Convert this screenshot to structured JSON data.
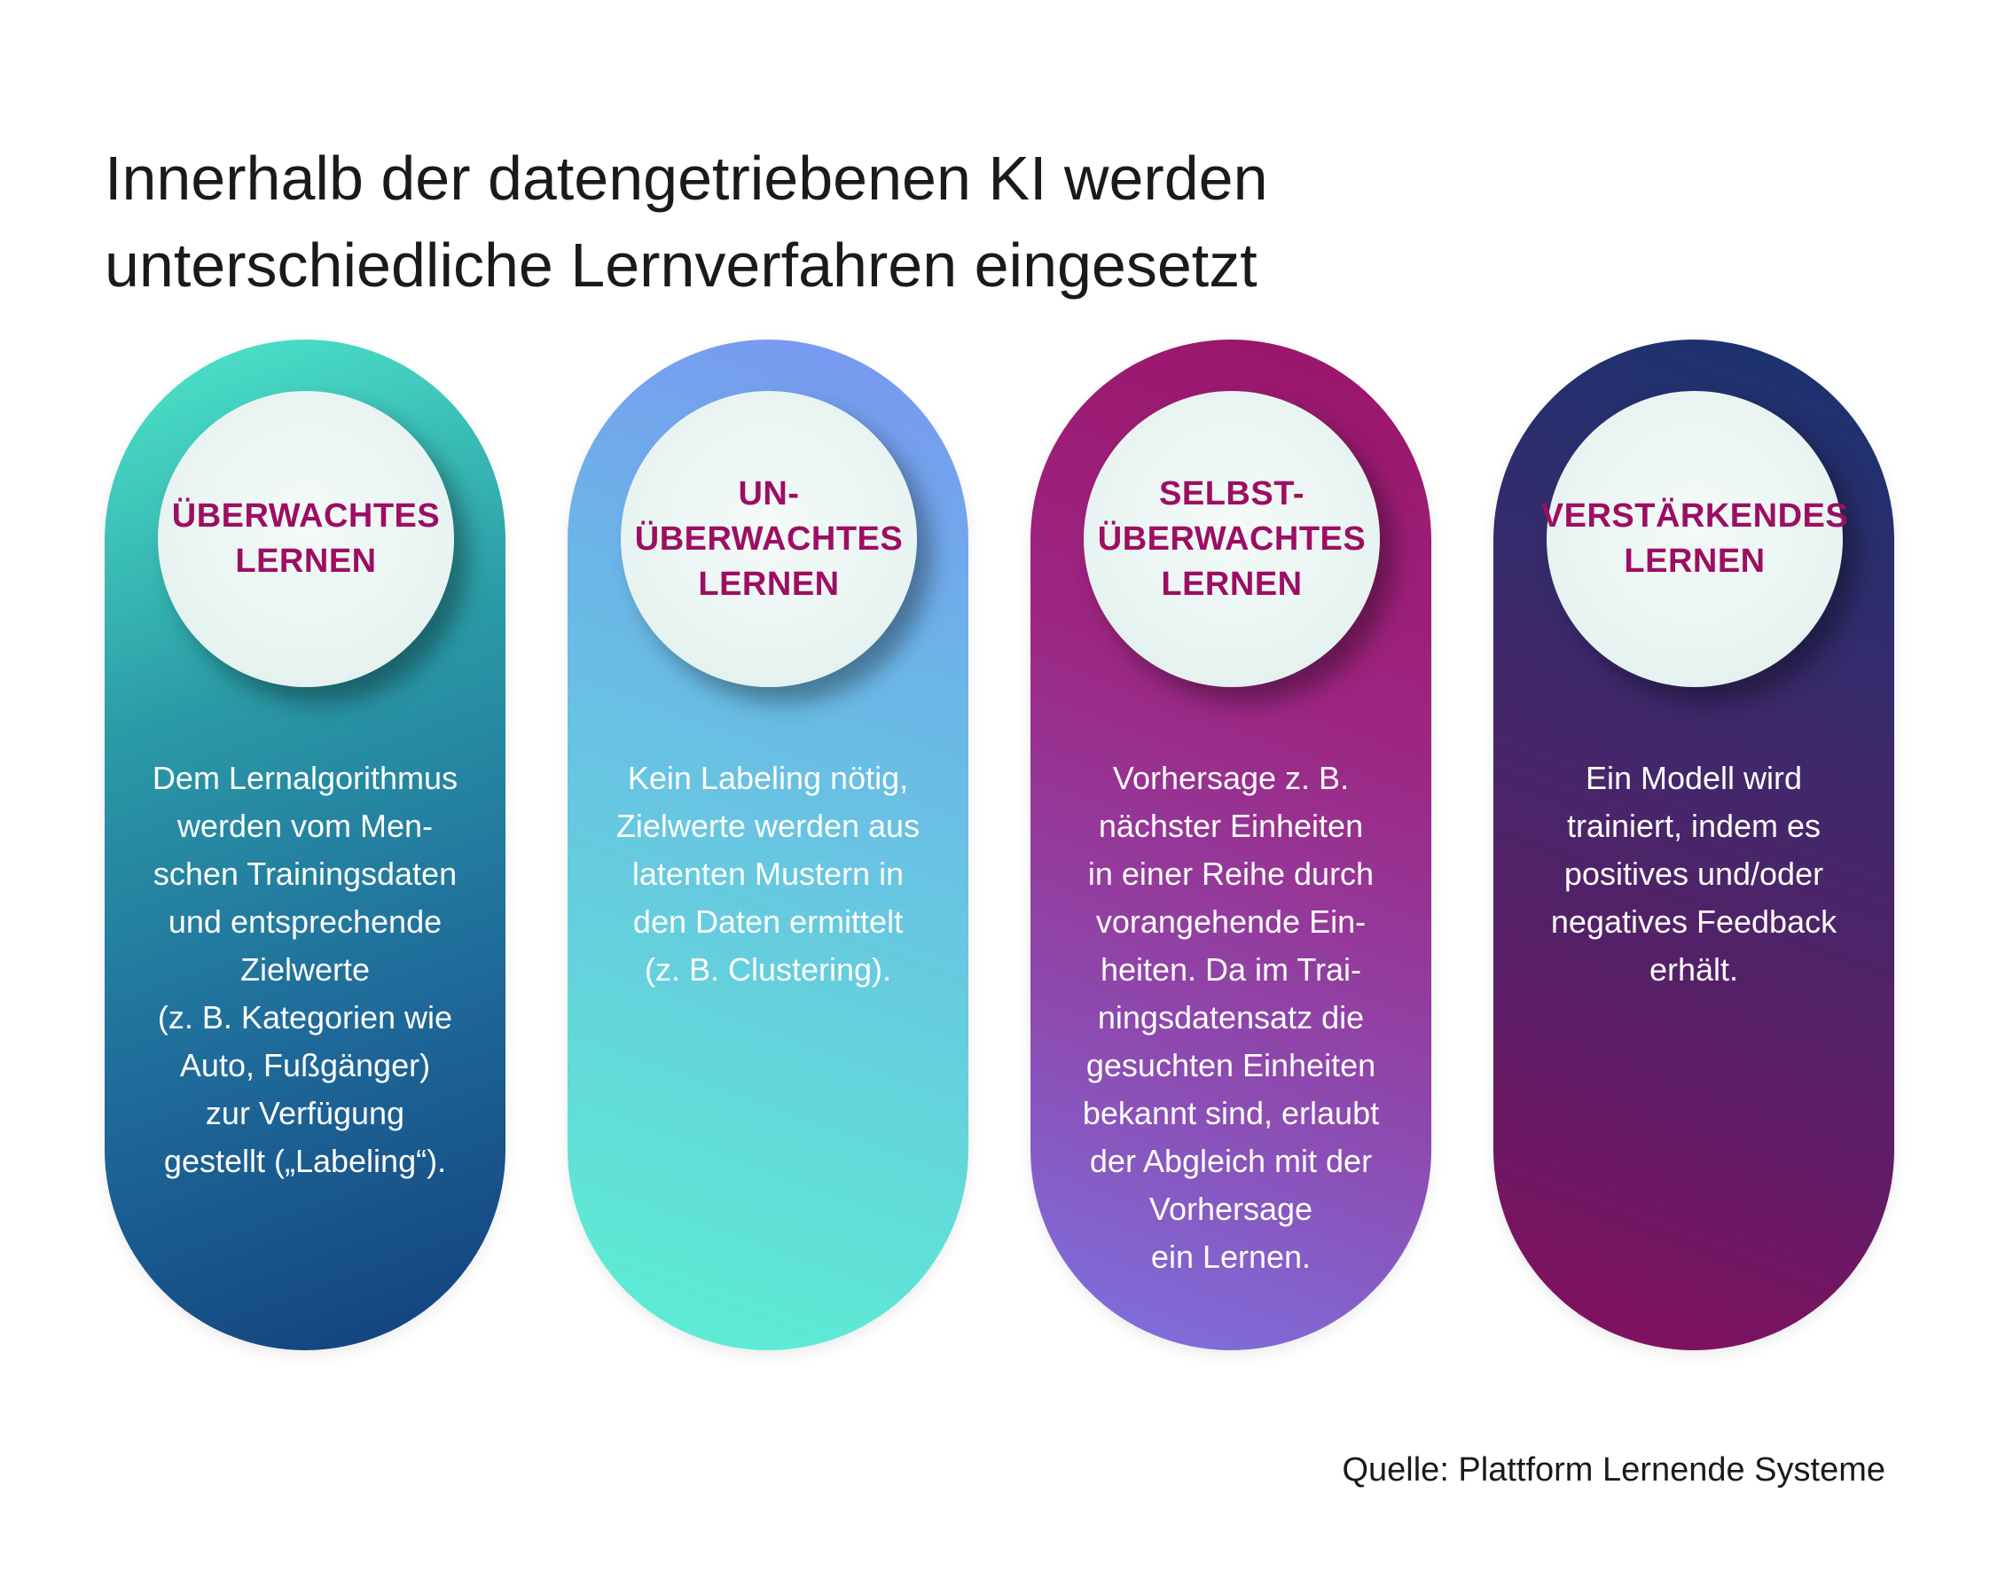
{
  "title": {
    "line1": "Innerhalb der datengetriebenen KI werden",
    "line2": "unterschiedliche Lernverfahren eingesetzt"
  },
  "pills": [
    {
      "badge_lines": [
        "ÜBERWACHTES",
        "LERNEN"
      ],
      "description_lines": [
        "Dem Lernalgorithmus",
        "werden vom Men-",
        "schen Trainingsdaten",
        "und entsprechende",
        "Zielwerte",
        "(z. B. Kategorien wie",
        "Auto, Fußgänger)",
        "zur Verfügung",
        "gestellt („Labeling“)."
      ]
    },
    {
      "badge_lines": [
        "UN-",
        "ÜBERWACHTES",
        "LERNEN"
      ],
      "description_lines": [
        "Kein Labeling nötig,",
        "Zielwerte werden aus",
        "latenten Mustern in",
        "den Daten ermittelt",
        "(z. B. Clustering)."
      ]
    },
    {
      "badge_lines": [
        "SELBST-",
        "ÜBERWACHTES",
        "LERNEN"
      ],
      "description_lines": [
        "Vorhersage z. B.",
        "nächster Einheiten",
        "in einer Reihe durch",
        "vorangehende Ein-",
        "heiten. Da im Trai-",
        "ningsdatensatz die",
        "gesuchten Einheiten",
        "bekannt sind, erlaubt",
        "der Abgleich mit der",
        "Vorhersage",
        "ein Lernen."
      ]
    },
    {
      "badge_lines": [
        "VERSTÄRKENDES",
        "LERNEN"
      ],
      "description_lines": [
        "Ein Modell wird",
        "trainiert, indem es",
        "positives und/oder",
        "negatives Feedback",
        "erhält."
      ]
    }
  ],
  "source": "Quelle: Plattform Lernende Systeme"
}
